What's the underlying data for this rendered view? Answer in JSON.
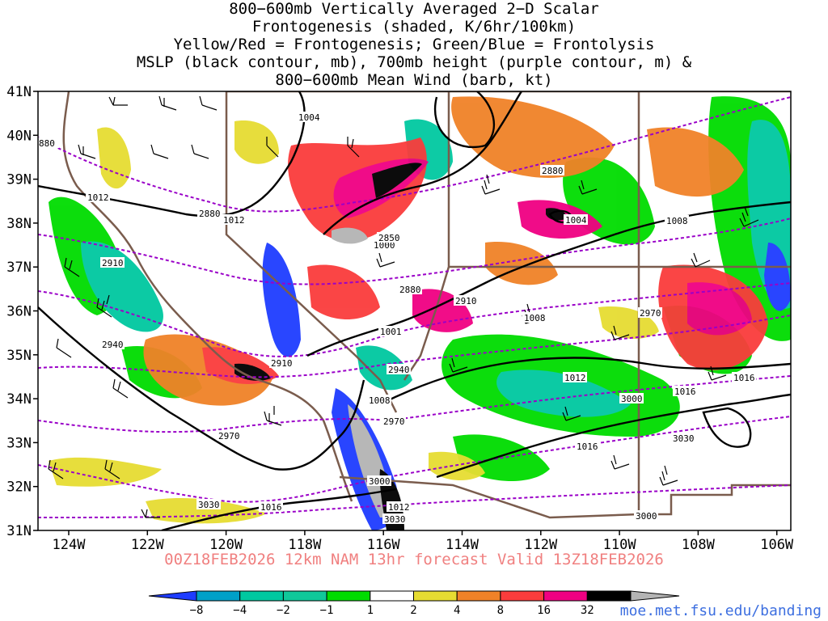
{
  "title_lines": [
    "800−600mb Vertically Averaged 2−D Scalar",
    "Frontogenesis (shaded, K/6hr/100km)",
    "Yellow/Red = Frontogenesis;  Green/Blue = Frontolysis",
    "MSLP (black contour, mb), 700mb height (purple contour, m) &",
    "800−600mb Mean Wind (barb, kt)"
  ],
  "forecast_text": "00Z18FEB2026 12km NAM 13hr forecast Valid 13Z18FEB2026",
  "source_url": "moe.met.fsu.edu/banding",
  "map": {
    "lat_labels": [
      "41N",
      "40N",
      "39N",
      "38N",
      "37N",
      "36N",
      "35N",
      "34N",
      "33N",
      "32N",
      "31N"
    ],
    "lon_labels": [
      "124W",
      "122W",
      "120W",
      "118W",
      "116W",
      "114W",
      "112W",
      "110W",
      "108W",
      "106W"
    ],
    "lat_range": [
      31,
      41
    ],
    "lon_range": [
      -125,
      -105
    ]
  },
  "colorbar": {
    "labels": [
      "−8",
      "−4",
      "−2",
      "−1",
      "1",
      "2",
      "4",
      "8",
      "16",
      "32"
    ],
    "colors": [
      "#1e3cff",
      "#00a0c8",
      "#00c8a0",
      "#10c89a",
      "#00dc00",
      "#ffffff",
      "#e6dc32",
      "#f08228",
      "#fa3c3c",
      "#f00082",
      "#000000",
      "#b4b4b4"
    ]
  },
  "mslp_labels": [
    "1004",
    "1012",
    "1012",
    "1000",
    "1004",
    "1008",
    "1001",
    "1008",
    "1008",
    "1012",
    "1016",
    "1016",
    "1016",
    "1016",
    "1012"
  ],
  "height_labels": [
    "880",
    "2880",
    "2850",
    "2880",
    "2880",
    "2910",
    "2910",
    "2910",
    "2940",
    "2940",
    "2970",
    "2970",
    "2970",
    "3000",
    "3030",
    "3030",
    "3030",
    "3000",
    "3000"
  ]
}
